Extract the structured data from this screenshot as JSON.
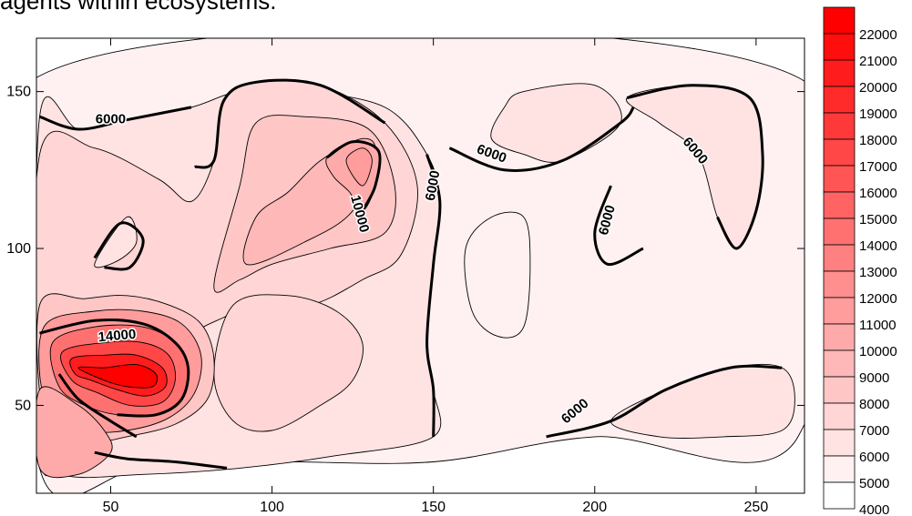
{
  "caption": "agents within ecosystems.",
  "chart_data": {
    "type": "contour",
    "title": "",
    "xlabel": "",
    "ylabel": "",
    "xlim": [
      27,
      265
    ],
    "ylim": [
      22,
      167
    ],
    "x_ticks": [
      50,
      100,
      150,
      200,
      250
    ],
    "y_ticks": [
      50,
      100,
      150
    ],
    "levels": [
      4000,
      5000,
      6000,
      7000,
      8000,
      9000,
      10000,
      11000,
      12000,
      13000,
      14000,
      15000,
      16000,
      17000,
      18000,
      19000,
      20000,
      21000,
      22000,
      23000
    ],
    "color_low": "#ffffff",
    "color_high": "#ff0000",
    "contour_labels": [
      {
        "text": "6000",
        "x": 50,
        "y": 141,
        "angle": 0
      },
      {
        "text": "6000",
        "x": 150,
        "y": 120,
        "angle": -80
      },
      {
        "text": "6000",
        "x": 168,
        "y": 130,
        "angle": 20
      },
      {
        "text": "6000",
        "x": 231,
        "y": 131,
        "angle": 50
      },
      {
        "text": "6000",
        "x": 204,
        "y": 109,
        "angle": -75
      },
      {
        "text": "6000",
        "x": 194,
        "y": 48,
        "angle": -40
      },
      {
        "text": "10000",
        "x": 127,
        "y": 111,
        "angle": 75
      },
      {
        "text": "14000",
        "x": 52,
        "y": 72,
        "angle": -5
      }
    ],
    "regions": [
      {
        "level": 5000,
        "points": [
          [
            28,
            155
          ],
          [
            262,
            155
          ],
          [
            263,
            40
          ],
          [
            200,
            40
          ],
          [
            150,
            32
          ],
          [
            100,
            32
          ],
          [
            60,
            30
          ],
          [
            28,
            30
          ]
        ]
      },
      {
        "level": 6000,
        "points": [
          [
            28,
            142
          ],
          [
            40,
            138
          ],
          [
            55,
            141
          ],
          [
            75,
            145
          ],
          [
            90,
            150
          ],
          [
            110,
            150
          ],
          [
            135,
            145
          ],
          [
            148,
            130
          ],
          [
            152,
            115
          ],
          [
            150,
            95
          ],
          [
            148,
            70
          ],
          [
            150,
            55
          ],
          [
            150,
            40
          ],
          [
            120,
            34
          ],
          [
            90,
            30
          ],
          [
            60,
            28
          ],
          [
            35,
            28
          ],
          [
            28,
            40
          ]
        ]
      },
      {
        "level": 5000,
        "points": [
          [
            168,
            110
          ],
          [
            178,
            110
          ],
          [
            180,
            95
          ],
          [
            178,
            75
          ],
          [
            170,
            72
          ],
          [
            162,
            80
          ],
          [
            160,
            100
          ]
        ]
      },
      {
        "level": 6000,
        "points": [
          [
            172,
            145
          ],
          [
            178,
            150
          ],
          [
            200,
            152
          ],
          [
            208,
            140
          ],
          [
            190,
            128
          ],
          [
            178,
            130
          ],
          [
            168,
            135
          ]
        ]
      },
      {
        "level": 6000,
        "points": [
          [
            210,
            148
          ],
          [
            230,
            152
          ],
          [
            248,
            148
          ],
          [
            252,
            130
          ],
          [
            250,
            112
          ],
          [
            244,
            100
          ],
          [
            238,
            110
          ],
          [
            232,
            130
          ],
          [
            220,
            140
          ]
        ]
      },
      {
        "level": 6000,
        "points": [
          [
            205,
            45
          ],
          [
            222,
            55
          ],
          [
            242,
            62
          ],
          [
            258,
            62
          ],
          [
            262,
            52
          ],
          [
            258,
            42
          ],
          [
            240,
            40
          ],
          [
            220,
            40
          ]
        ]
      },
      {
        "level": 7000,
        "points": [
          [
            28,
            130
          ],
          [
            45,
            132
          ],
          [
            65,
            122
          ],
          [
            75,
            115
          ],
          [
            82,
            128
          ],
          [
            85,
            147
          ],
          [
            95,
            153
          ],
          [
            115,
            152
          ],
          [
            135,
            140
          ],
          [
            145,
            120
          ],
          [
            140,
            98
          ],
          [
            128,
            90
          ],
          [
            112,
            82
          ],
          [
            95,
            82
          ],
          [
            85,
            78
          ],
          [
            75,
            72
          ],
          [
            70,
            60
          ],
          [
            60,
            50
          ],
          [
            45,
            40
          ],
          [
            28,
            45
          ]
        ]
      },
      {
        "level": 8000,
        "points": [
          [
            82,
            88
          ],
          [
            90,
            120
          ],
          [
            95,
            140
          ],
          [
            110,
            142
          ],
          [
            130,
            138
          ],
          [
            138,
            120
          ],
          [
            135,
            105
          ],
          [
            118,
            100
          ],
          [
            100,
            95
          ],
          [
            90,
            90
          ]
        ]
      },
      {
        "level": 7000,
        "points": [
          [
            88,
            82
          ],
          [
            105,
            85
          ],
          [
            120,
            80
          ],
          [
            128,
            70
          ],
          [
            125,
            58
          ],
          [
            115,
            50
          ],
          [
            100,
            42
          ],
          [
            88,
            45
          ],
          [
            82,
            60
          ]
        ]
      },
      {
        "level": 9000,
        "points": [
          [
            92,
            95
          ],
          [
            110,
            102
          ],
          [
            125,
            112
          ],
          [
            132,
            130
          ],
          [
            128,
            135
          ],
          [
            115,
            128
          ],
          [
            105,
            118
          ],
          [
            95,
            110
          ]
        ]
      },
      {
        "level": 10000,
        "points": [
          [
            117,
            129
          ],
          [
            125,
            134
          ],
          [
            133,
            131
          ],
          [
            132,
            120
          ],
          [
            128,
            112
          ],
          [
            124,
            118
          ],
          [
            119,
            123
          ]
        ]
      },
      {
        "level": 11000,
        "points": [
          [
            123,
            128
          ],
          [
            128,
            132
          ],
          [
            131,
            128
          ],
          [
            128,
            120
          ]
        ]
      },
      {
        "level": 6000,
        "points": [
          [
            45,
            95
          ],
          [
            55,
            110
          ],
          [
            58,
            102
          ],
          [
            52,
            96
          ]
        ]
      },
      {
        "level": 8000,
        "points": [
          [
            28,
            82
          ],
          [
            42,
            84
          ],
          [
            55,
            85
          ],
          [
            68,
            82
          ],
          [
            78,
            76
          ],
          [
            82,
            65
          ],
          [
            80,
            52
          ],
          [
            70,
            44
          ],
          [
            55,
            40
          ],
          [
            42,
            38
          ],
          [
            30,
            42
          ]
        ]
      },
      {
        "level": 11000,
        "points": [
          [
            30,
            76
          ],
          [
            45,
            80
          ],
          [
            60,
            80
          ],
          [
            72,
            76
          ],
          [
            78,
            66
          ],
          [
            76,
            54
          ],
          [
            68,
            46
          ],
          [
            55,
            42
          ],
          [
            42,
            42
          ],
          [
            32,
            48
          ],
          [
            28,
            60
          ]
        ]
      },
      {
        "level": 14000,
        "points": [
          [
            32,
            70
          ],
          [
            45,
            75
          ],
          [
            60,
            75
          ],
          [
            70,
            70
          ],
          [
            74,
            62
          ],
          [
            72,
            52
          ],
          [
            64,
            47
          ],
          [
            52,
            47
          ],
          [
            42,
            50
          ],
          [
            34,
            56
          ]
        ]
      },
      {
        "level": 17000,
        "points": [
          [
            35,
            67
          ],
          [
            48,
            70
          ],
          [
            60,
            70
          ],
          [
            68,
            66
          ],
          [
            70,
            58
          ],
          [
            66,
            51
          ],
          [
            56,
            50
          ],
          [
            46,
            54
          ],
          [
            38,
            58
          ]
        ]
      },
      {
        "level": 20000,
        "points": [
          [
            38,
            65
          ],
          [
            48,
            66
          ],
          [
            58,
            66
          ],
          [
            66,
            62
          ],
          [
            67,
            56
          ],
          [
            61,
            53
          ],
          [
            52,
            55
          ],
          [
            44,
            58
          ],
          [
            39,
            60
          ]
        ]
      },
      {
        "level": 22000,
        "points": [
          [
            40,
            62
          ],
          [
            48,
            62
          ],
          [
            58,
            63
          ],
          [
            64,
            60
          ],
          [
            63,
            56
          ],
          [
            55,
            56
          ],
          [
            48,
            58
          ]
        ]
      },
      {
        "level": 10000,
        "points": [
          [
            28,
            55
          ],
          [
            40,
            50
          ],
          [
            48,
            42
          ],
          [
            50,
            35
          ],
          [
            40,
            28
          ],
          [
            28,
            30
          ]
        ]
      }
    ],
    "thick_lines": [
      {
        "level": 6000,
        "points": [
          [
            28,
            142
          ],
          [
            40,
            138
          ],
          [
            55,
            141
          ],
          [
            75,
            145
          ]
        ]
      },
      {
        "level": 6000,
        "points": [
          [
            76,
            126
          ],
          [
            82,
            128
          ],
          [
            85,
            147
          ],
          [
            95,
            153
          ],
          [
            115,
            152
          ],
          [
            135,
            140
          ]
        ]
      },
      {
        "level": 6000,
        "points": [
          [
            148,
            130
          ],
          [
            152,
            115
          ],
          [
            150,
            95
          ],
          [
            148,
            70
          ],
          [
            150,
            55
          ],
          [
            150,
            40
          ]
        ]
      },
      {
        "level": 6000,
        "points": [
          [
            155,
            132
          ],
          [
            172,
            125
          ],
          [
            190,
            128
          ],
          [
            208,
            140
          ],
          [
            212,
            145
          ]
        ]
      },
      {
        "level": 6000,
        "points": [
          [
            210,
            148
          ],
          [
            230,
            152
          ],
          [
            248,
            148
          ],
          [
            252,
            130
          ],
          [
            250,
            112
          ],
          [
            244,
            100
          ],
          [
            238,
            110
          ]
        ]
      },
      {
        "level": 6000,
        "points": [
          [
            205,
            120
          ],
          [
            200,
            105
          ],
          [
            204,
            95
          ],
          [
            215,
            100
          ]
        ]
      },
      {
        "level": 6000,
        "points": [
          [
            185,
            40
          ],
          [
            205,
            45
          ],
          [
            222,
            55
          ],
          [
            242,
            62
          ],
          [
            258,
            62
          ]
        ]
      },
      {
        "level": 8000,
        "points": [
          [
            45,
            97
          ],
          [
            53,
            108
          ],
          [
            60,
            103
          ],
          [
            56,
            94
          ],
          [
            48,
            94
          ]
        ]
      },
      {
        "level": 10000,
        "points": [
          [
            117,
            129
          ],
          [
            125,
            134
          ],
          [
            133,
            131
          ],
          [
            132,
            120
          ],
          [
            128,
            112
          ]
        ]
      },
      {
        "level": 14000,
        "points": [
          [
            28,
            73
          ],
          [
            45,
            77
          ],
          [
            60,
            76
          ],
          [
            70,
            70
          ],
          [
            74,
            62
          ],
          [
            72,
            52
          ],
          [
            64,
            47
          ],
          [
            52,
            47
          ]
        ]
      },
      {
        "level": 14000,
        "points": [
          [
            34,
            60
          ],
          [
            40,
            52
          ],
          [
            50,
            45
          ],
          [
            58,
            40
          ]
        ]
      },
      {
        "level": 14000,
        "points": [
          [
            45,
            35
          ],
          [
            55,
            33
          ],
          [
            70,
            32
          ],
          [
            86,
            30
          ]
        ]
      }
    ]
  }
}
